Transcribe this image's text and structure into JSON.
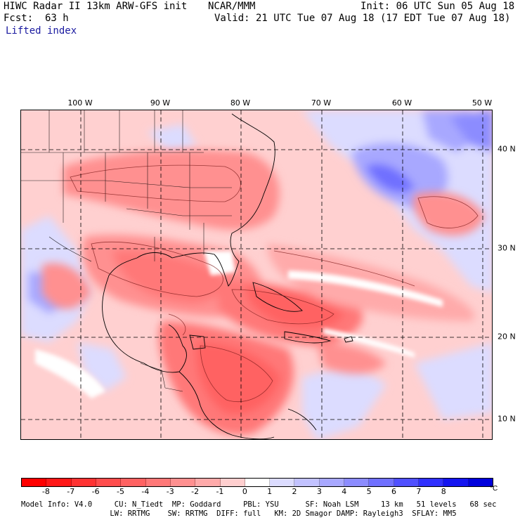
{
  "header": {
    "model_title": "HIWC Radar II 13km ARW-GFS init",
    "org": "NCAR/MMM",
    "init_line": "Init: 06 UTC Sun 05 Aug 18",
    "fcst_label": "Fcst:",
    "fcst_value": "63 h",
    "valid_line": "Valid: 21 UTC Tue 07 Aug 18 (17 EDT Tue 07 Aug 18)",
    "field_name": "Lifted index"
  },
  "map": {
    "lon_labels": [
      "100 W",
      "90 W",
      "80 W",
      "70 W",
      "60 W",
      "50 W"
    ],
    "lat_labels": [
      "40 N",
      "30 N",
      "20 N",
      "10 N"
    ]
  },
  "colorbar": {
    "tick_labels": [
      "-8",
      "-7",
      "-6",
      "-5",
      "-4",
      "-3",
      "-2",
      "-1",
      "0",
      "1",
      "2",
      "3",
      "4",
      "5",
      "6",
      "7",
      "8"
    ],
    "unit": "°C",
    "colors": [
      "#ff0000",
      "#ff1818",
      "#ff3333",
      "#ff4d4d",
      "#ff6262",
      "#ff7878",
      "#ff9090",
      "#ffaaaa",
      "#ffcfcf",
      "#ffffff",
      "#dcdcff",
      "#c2c2ff",
      "#a8a8ff",
      "#8c8cff",
      "#7070ff",
      "#5050ff",
      "#3030ff",
      "#1414f0",
      "#0000dc"
    ]
  },
  "footer": {
    "line1": "Model Info: V4.0     CU: N_Tiedt  MP: Goddard     PBL: YSU      SF: Noah LSM     13 km   51 levels   68 sec",
    "line2": "                    LW: RRTMG    SW: RRTMG  DIFF: full   KM: 2D Smagor DAMP: Rayleigh3  SFLAY: MM5"
  }
}
